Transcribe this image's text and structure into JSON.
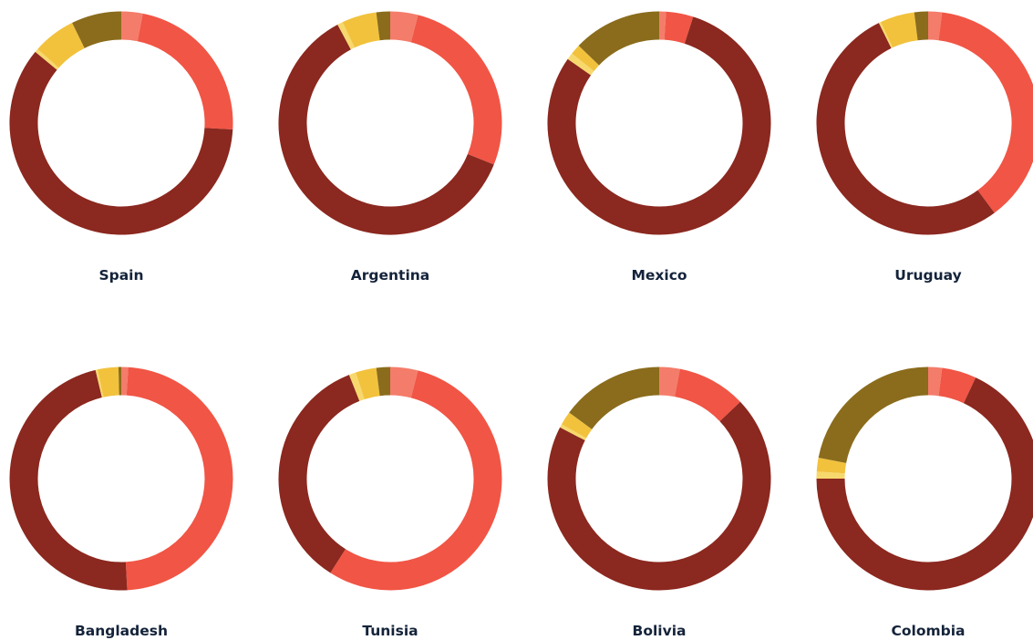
{
  "colors": {
    "segment_1": "#f47c6a",
    "segment_2": "#f15545",
    "segment_3": "#8b281f",
    "segment_4": "#f7d86d",
    "segment_5": "#f2c23d",
    "segment_6": "#8a6c1c",
    "label": "#14233a"
  },
  "chart_data": [
    {
      "type": "pie",
      "title": "Spain",
      "values": [
        3,
        22,
        58,
        0.5,
        6,
        7
      ]
    },
    {
      "type": "pie",
      "title": "Argentina",
      "values": [
        4,
        27,
        61,
        0.8,
        5,
        2
      ]
    },
    {
      "type": "pie",
      "title": "Mexico",
      "values": [
        1,
        4,
        81,
        1,
        1.5,
        13
      ]
    },
    {
      "type": "pie",
      "title": "Uruguay",
      "values": [
        2,
        38,
        53,
        0.3,
        5,
        2
      ]
    },
    {
      "type": "pie",
      "title": "Bangladesh",
      "values": [
        1,
        48,
        47,
        0.3,
        3,
        0.4
      ]
    },
    {
      "type": "pie",
      "title": "Tunisia",
      "values": [
        4,
        55,
        35,
        1,
        3,
        2
      ]
    },
    {
      "type": "pie",
      "title": "Bolivia",
      "values": [
        3,
        10,
        70,
        0.5,
        2,
        15
      ]
    },
    {
      "type": "pie",
      "title": "Colombia",
      "values": [
        2,
        5,
        68,
        1,
        2,
        22
      ]
    }
  ]
}
